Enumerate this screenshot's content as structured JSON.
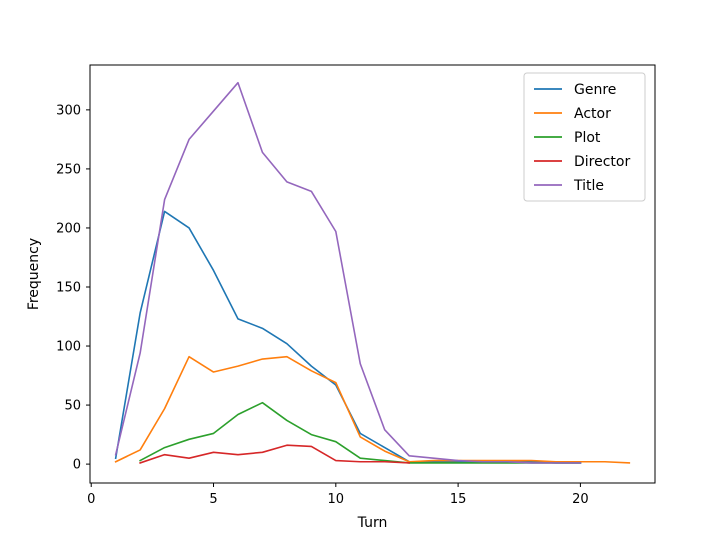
{
  "chart_data": {
    "type": "line",
    "title": "",
    "xlabel": "Turn",
    "ylabel": "Frequency",
    "xlim": [
      -0.05,
      23.05
    ],
    "ylim": [
      -16,
      338
    ],
    "xticks": [
      0,
      5,
      10,
      15,
      20
    ],
    "yticks": [
      0,
      50,
      100,
      150,
      200,
      250,
      300
    ],
    "xtick_labels": [
      "0",
      "5",
      "10",
      "15",
      "20"
    ],
    "ytick_labels": [
      "0",
      "50",
      "100",
      "150",
      "200",
      "250",
      "300"
    ],
    "grid": false,
    "legend_position": "upper-right",
    "series": [
      {
        "name": "Genre",
        "color": "#1f77b4",
        "points": [
          [
            1,
            5
          ],
          [
            2,
            128
          ],
          [
            3,
            214
          ],
          [
            4,
            200
          ],
          [
            5,
            164
          ],
          [
            6,
            123
          ],
          [
            7,
            115
          ],
          [
            8,
            102
          ],
          [
            9,
            83
          ],
          [
            10,
            67
          ],
          [
            11,
            26
          ],
          [
            12,
            14
          ],
          [
            13,
            2
          ],
          [
            14,
            2
          ],
          [
            15,
            2
          ],
          [
            16,
            2
          ],
          [
            17,
            2
          ],
          [
            18,
            2
          ],
          [
            19,
            1
          ],
          [
            20,
            1
          ]
        ]
      },
      {
        "name": "Actor",
        "color": "#ff7f0e",
        "points": [
          [
            1,
            2
          ],
          [
            2,
            12
          ],
          [
            3,
            47
          ],
          [
            4,
            91
          ],
          [
            5,
            78
          ],
          [
            6,
            83
          ],
          [
            7,
            89
          ],
          [
            8,
            91
          ],
          [
            9,
            79
          ],
          [
            10,
            69
          ],
          [
            11,
            23
          ],
          [
            12,
            11
          ],
          [
            13,
            2
          ],
          [
            14,
            3
          ],
          [
            15,
            3
          ],
          [
            16,
            3
          ],
          [
            17,
            3
          ],
          [
            18,
            3
          ],
          [
            19,
            2
          ],
          [
            20,
            2
          ],
          [
            21,
            2
          ],
          [
            22,
            1
          ]
        ]
      },
      {
        "name": "Plot",
        "color": "#2ca02c",
        "points": [
          [
            2,
            3
          ],
          [
            3,
            14
          ],
          [
            4,
            21
          ],
          [
            5,
            26
          ],
          [
            6,
            42
          ],
          [
            7,
            52
          ],
          [
            8,
            37
          ],
          [
            9,
            25
          ],
          [
            10,
            19
          ],
          [
            11,
            5
          ],
          [
            12,
            3
          ],
          [
            13,
            1
          ],
          [
            14,
            1
          ],
          [
            15,
            1
          ],
          [
            16,
            1
          ],
          [
            17,
            1
          ],
          [
            18,
            1
          ],
          [
            19,
            1
          ],
          [
            20,
            1
          ]
        ]
      },
      {
        "name": "Director",
        "color": "#d62728",
        "points": [
          [
            2,
            1
          ],
          [
            3,
            8
          ],
          [
            4,
            5
          ],
          [
            5,
            10
          ],
          [
            6,
            8
          ],
          [
            7,
            10
          ],
          [
            8,
            16
          ],
          [
            9,
            15
          ],
          [
            10,
            3
          ],
          [
            11,
            2
          ],
          [
            12,
            2
          ],
          [
            13,
            1
          ]
        ]
      },
      {
        "name": "Title",
        "color": "#9467bd",
        "points": [
          [
            1,
            8
          ],
          [
            2,
            94
          ],
          [
            3,
            224
          ],
          [
            4,
            275
          ],
          [
            5,
            299
          ],
          [
            6,
            323
          ],
          [
            7,
            264
          ],
          [
            8,
            239
          ],
          [
            9,
            231
          ],
          [
            10,
            197
          ],
          [
            11,
            85
          ],
          [
            12,
            29
          ],
          [
            13,
            7
          ],
          [
            14,
            5
          ],
          [
            15,
            3
          ],
          [
            16,
            2
          ],
          [
            17,
            2
          ],
          [
            18,
            1
          ],
          [
            19,
            1
          ],
          [
            20,
            1
          ]
        ]
      }
    ]
  }
}
